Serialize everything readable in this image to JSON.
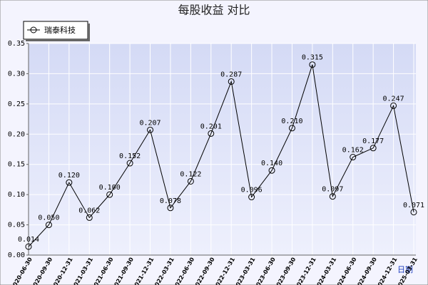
{
  "chart_data": {
    "type": "line",
    "title": "每股收益 对比",
    "x_label": "日期",
    "categories": [
      "2020-06-30",
      "2020-09-30",
      "2020-12-31",
      "2021-03-31",
      "2021-06-30",
      "2021-09-30",
      "2021-12-31",
      "2022-03-31",
      "2022-06-30",
      "2022-09-30",
      "2022-12-31",
      "2023-03-31",
      "2023-06-30",
      "2023-09-30",
      "2023-12-31",
      "2024-03-31",
      "2024-06-30",
      "2024-09-30",
      "2024-12-31",
      "2025-03-31"
    ],
    "series": [
      {
        "name": "瑞泰科技",
        "color": "#000000",
        "values": [
          0.014,
          0.05,
          0.12,
          0.062,
          0.1,
          0.152,
          0.207,
          0.078,
          0.122,
          0.201,
          0.287,
          0.096,
          0.14,
          0.21,
          0.315,
          0.097,
          0.162,
          0.177,
          0.247,
          0.071
        ],
        "value_labels": [
          "0.014",
          "0.050",
          "0.120",
          "0.062",
          "0.100",
          "0.152",
          "0.207",
          "0.078",
          "0.122",
          "0.201",
          "0.287",
          "0.096",
          "0.140",
          "0.210",
          "0.315",
          "0.097",
          "0.162",
          "0.177",
          "0.247",
          "0.071"
        ]
      }
    ],
    "ylim": [
      0,
      0.35
    ],
    "yticks": [
      {
        "value": 0,
        "label": "0.00"
      },
      {
        "value": 0.05,
        "label": "0.05"
      },
      {
        "value": 0.1,
        "label": "0.10"
      },
      {
        "value": 0.15,
        "label": "0.15"
      },
      {
        "value": 0.2,
        "label": "0.20"
      },
      {
        "value": 0.25,
        "label": "0.25"
      },
      {
        "value": 0.3,
        "label": "0.30"
      },
      {
        "value": 0.35,
        "label": "0.35"
      }
    ],
    "grid": true,
    "legend": "top-left"
  }
}
